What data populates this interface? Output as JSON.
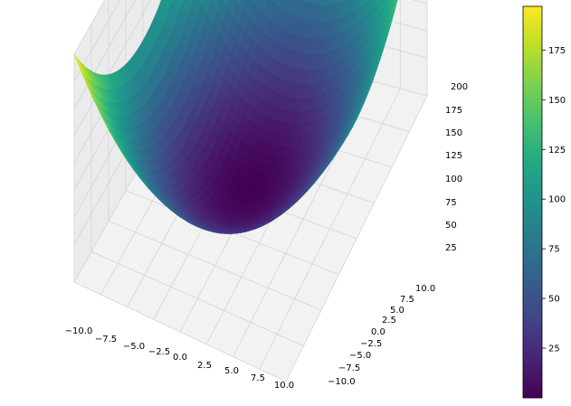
{
  "chart_data": {
    "type": "surface3d",
    "function": "z = x^2 + y^2",
    "x_range": [
      -10,
      10
    ],
    "y_range": [
      -10,
      10
    ],
    "z_range": [
      0,
      200
    ],
    "colormap": "viridis",
    "grid": true,
    "x_ticks": [
      "−10.0",
      "−7.5",
      "−5.0",
      "−2.5",
      "0.0",
      "2.5",
      "5.0",
      "7.5",
      "10.0"
    ],
    "y_ticks": [
      "−10.0",
      "−7.5",
      "−5.0",
      "−2.5",
      "0.0",
      "2.5",
      "5.0",
      "7.5",
      "10.0"
    ],
    "z_ticks": [
      "25",
      "50",
      "75",
      "100",
      "125",
      "150",
      "175",
      "200"
    ],
    "colorbar": {
      "range": [
        0,
        197
      ],
      "ticks": [
        "25",
        "50",
        "75",
        "100",
        "125",
        "150",
        "175"
      ]
    }
  }
}
